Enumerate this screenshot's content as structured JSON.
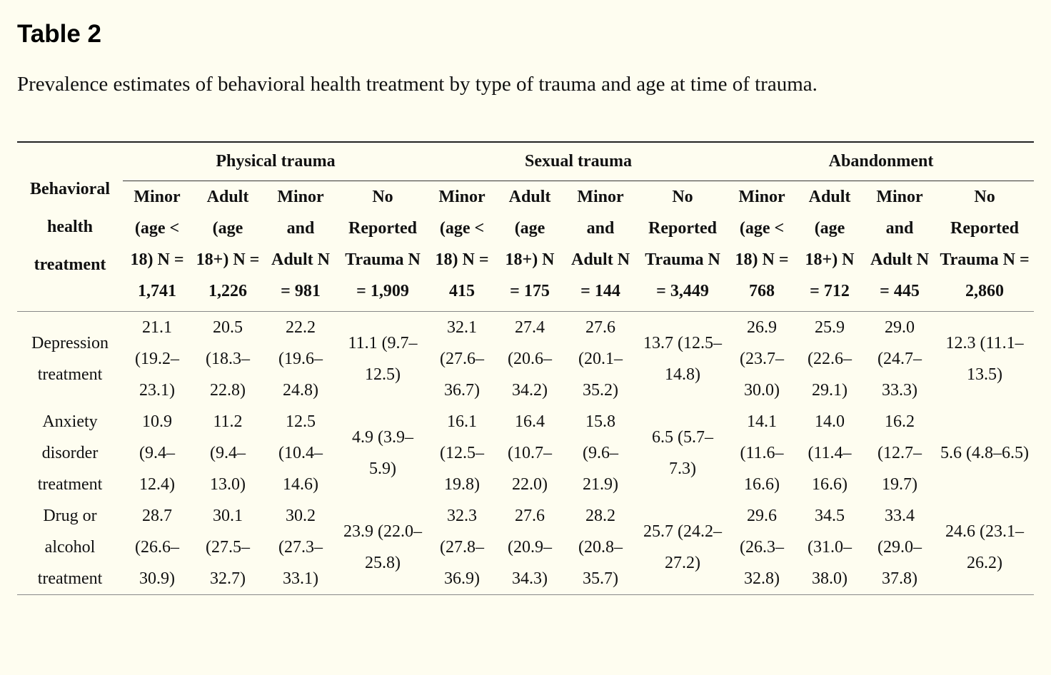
{
  "title": "Table 2",
  "caption": "Prevalence estimates of behavioral health treatment by type of trauma and age at time of trauma.",
  "row_header": "Behavioral health treatment",
  "groups": [
    "Physical trauma",
    "Sexual trauma",
    "Abandonment"
  ],
  "subheaders": [
    [
      "Minor (age < 18) N = 1,741",
      "Adult (age 18+) N = 1,226",
      "Minor and Adult N = 981",
      "No Reported Trauma N = 1,909"
    ],
    [
      "Minor (age < 18) N = 415",
      "Adult (age 18+) N = 175",
      "Minor and Adult N = 144",
      "No Reported Trauma N = 3,449"
    ],
    [
      "Minor (age < 18) N = 768",
      "Adult (age 18+) N = 712",
      "Minor and Adult N = 445",
      "No Reported Trauma N = 2,860"
    ]
  ],
  "rows": [
    {
      "label": "Depression treatment",
      "cells": [
        "21.1 (19.2–23.1)",
        "20.5 (18.3–22.8)",
        "22.2 (19.6–24.8)",
        "11.1 (9.7–12.5)",
        "32.1 (27.6–36.7)",
        "27.4 (20.6–34.2)",
        "27.6 (20.1–35.2)",
        "13.7 (12.5–14.8)",
        "26.9 (23.7–30.0)",
        "25.9 (22.6–29.1)",
        "29.0 (24.7–33.3)",
        "12.3 (11.1–13.5)"
      ]
    },
    {
      "label": "Anxiety disorder treatment",
      "cells": [
        "10.9 (9.4–12.4)",
        "11.2 (9.4–13.0)",
        "12.5 (10.4–14.6)",
        "4.9 (3.9–5.9)",
        "16.1 (12.5–19.8)",
        "16.4 (10.7–22.0)",
        "15.8 (9.6–21.9)",
        "6.5 (5.7–7.3)",
        "14.1 (11.6–16.6)",
        "14.0 (11.4–16.6)",
        "16.2 (12.7–19.7)",
        "5.6 (4.8–6.5)"
      ]
    },
    {
      "label": "Drug or alcohol treatment",
      "cells": [
        "28.7 (26.6–30.9)",
        "30.1 (27.5–32.7)",
        "30.2 (27.3–33.1)",
        "23.9 (22.0–25.8)",
        "32.3 (27.8–36.9)",
        "27.6 (20.9–34.3)",
        "28.2 (20.8–35.7)",
        "25.7 (24.2–27.2)",
        "29.6 (26.3–32.8)",
        "34.5 (31.0–38.0)",
        "33.4 (29.0–37.8)",
        "24.6 (23.1–26.2)"
      ]
    }
  ]
}
